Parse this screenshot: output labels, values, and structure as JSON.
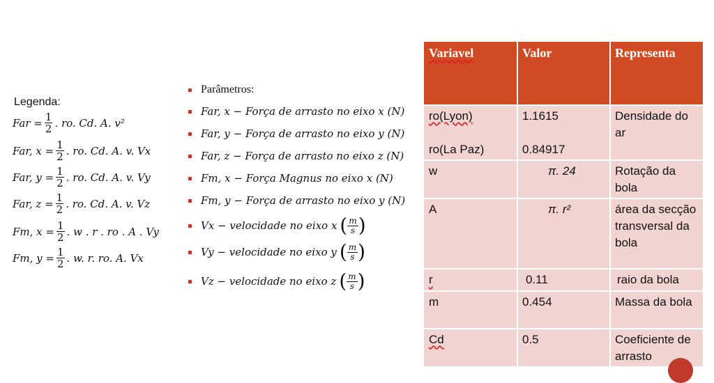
{
  "legend_title": "Legenda:",
  "formulas": [
    {
      "lhs": "Far",
      "pre": "",
      "post": ". ro. Cd. A. v²"
    },
    {
      "lhs": "Far, x",
      "pre": "",
      "post": ". ro. Cd. A. v. Vx"
    },
    {
      "lhs": "Far, y",
      "pre": "",
      "post": ". ro. Cd. A. v. Vy"
    },
    {
      "lhs": "Far, z",
      "pre": "",
      "post": ". ro. Cd. A. v. Vz"
    },
    {
      "lhs": "Fm, x",
      "pre": "",
      "post": ". w . r . ro . A . Vy"
    },
    {
      "lhs": "Fm, y",
      "pre": "",
      "post": ". w. r. ro. A. Vx"
    }
  ],
  "frac": {
    "num": "1",
    "den": "2"
  },
  "params_title": "Parâmetros:",
  "params": [
    "Far, x  − Força de arrasto no eixo x (N)",
    "Far, y  − Força de arrasto no eixo y (N)",
    "Far, z  − Força de arrasto no eixo z (N)",
    "Fm, x  − Força Magnus no eixo x (N)",
    "Fm, y  − Força de arrasto no eixo y (N)"
  ],
  "velocities": [
    "Vx  − velocidade no eixo x",
    "Vy  − velocidade no eixo y",
    "Vz  − velocidade no eixo z"
  ],
  "unit": {
    "num": "m",
    "den": "s"
  },
  "table": {
    "headers": [
      "Variavel",
      "Valor",
      "Representa"
    ],
    "rows": [
      {
        "var": "ro(Lyon)",
        "var2": "ro(La Paz)",
        "val": "1.1615",
        "val2": "0.84917",
        "rep": "Densidade do ar"
      },
      {
        "var": "w",
        "val": "π. 24",
        "rep": "Rotação da bola"
      },
      {
        "var": "A",
        "val": "π. r²",
        "rep": "área da secção transversal da bola"
      },
      {
        "var": "r",
        "val": "0.11",
        "rep": "raio da bola"
      },
      {
        "var": "m",
        "val": "0.454",
        "rep": "Massa da bola"
      },
      {
        "var": "Cd",
        "val": "0.5",
        "rep": "Coeficiente de arrasto"
      }
    ]
  },
  "colors": {
    "header": "#d04a24",
    "row": "#f1d3d1",
    "bullet": "#c0392b"
  }
}
